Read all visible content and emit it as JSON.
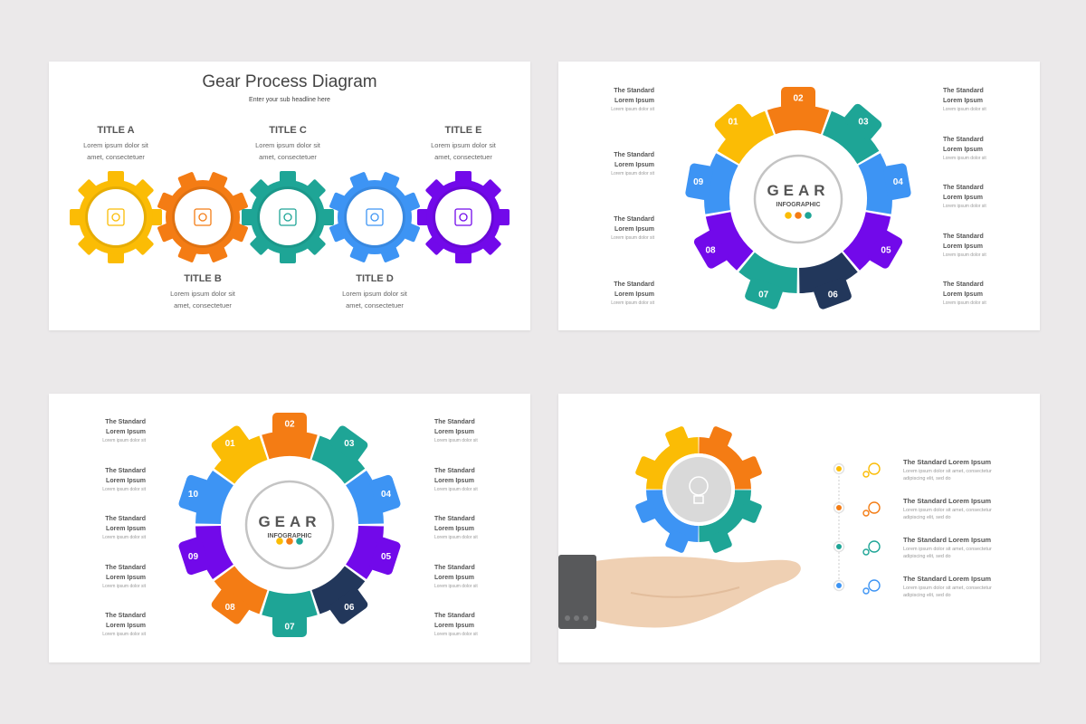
{
  "colors": {
    "yellow": "#fbbc05",
    "orange": "#f47c14",
    "teal": "#1ea596",
    "blue": "#3d94f4",
    "purple": "#7209ea",
    "navy": "#22375b",
    "gray": "#bdbdbd"
  },
  "slide1": {
    "title": "Gear Process Diagram",
    "subtitle": "Enter your sub headline here",
    "gears": [
      {
        "title": "TITLE A",
        "text1": "Lorem ipsum dolor sit",
        "text2": "amet, consectetuer",
        "color": "yellow",
        "icon": "document-flowchart-icon"
      },
      {
        "title": "TITLE B",
        "text1": "Lorem ipsum dolor sit",
        "text2": "amet, consectetuer",
        "color": "orange",
        "icon": "teamwork-hands-icon"
      },
      {
        "title": "TITLE C",
        "text1": "Lorem ipsum dolor sit",
        "text2": "amet, consectetuer",
        "color": "teal",
        "icon": "toolbox-icon"
      },
      {
        "title": "TITLE D",
        "text1": "Lorem ipsum dolor sit",
        "text2": "amet, consectetuer",
        "color": "blue",
        "icon": "rocket-icon"
      },
      {
        "title": "TITLE E",
        "text1": "Lorem ipsum dolor sit",
        "text2": "amet, consectetuer",
        "color": "purple",
        "icon": "brain-icon"
      }
    ]
  },
  "slide2": {
    "center_title": "GEAR",
    "center_subtitle": "INFOGRAPHIC",
    "segments": [
      {
        "num": "01",
        "color": "yellow"
      },
      {
        "num": "02",
        "color": "orange"
      },
      {
        "num": "03",
        "color": "teal"
      },
      {
        "num": "04",
        "color": "blue"
      },
      {
        "num": "05",
        "color": "purple"
      },
      {
        "num": "06",
        "color": "navy"
      },
      {
        "num": "07",
        "color": "teal"
      },
      {
        "num": "08",
        "color": "purple"
      },
      {
        "num": "09",
        "color": "blue"
      }
    ],
    "left_labels": [
      {
        "l1": "The Standard",
        "l2": "Lorem Ipsum",
        "d": "Lorem ipsum dolor sit"
      },
      {
        "l1": "The Standard",
        "l2": "Lorem Ipsum",
        "d": "Lorem ipsum dolor sit"
      },
      {
        "l1": "The Standard",
        "l2": "Lorem Ipsum",
        "d": "Lorem ipsum dolor sit"
      },
      {
        "l1": "The Standard",
        "l2": "Lorem Ipsum",
        "d": "Lorem ipsum dolor sit"
      }
    ],
    "right_labels": [
      {
        "l1": "The Standard",
        "l2": "Lorem Ipsum",
        "d": "Lorem ipsum dolor sit"
      },
      {
        "l1": "The Standard",
        "l2": "Lorem Ipsum",
        "d": "Lorem ipsum dolor sit"
      },
      {
        "l1": "The Standard",
        "l2": "Lorem Ipsum",
        "d": "Lorem ipsum dolor sit"
      },
      {
        "l1": "The Standard",
        "l2": "Lorem Ipsum",
        "d": "Lorem ipsum dolor sit"
      },
      {
        "l1": "The Standard",
        "l2": "Lorem Ipsum",
        "d": "Lorem ipsum dolor sit"
      }
    ]
  },
  "slide3": {
    "center_title": "GEAR",
    "center_subtitle": "INFOGRAPHIC",
    "segments": [
      {
        "num": "01",
        "color": "yellow"
      },
      {
        "num": "02",
        "color": "orange"
      },
      {
        "num": "03",
        "color": "teal"
      },
      {
        "num": "04",
        "color": "blue"
      },
      {
        "num": "05",
        "color": "purple"
      },
      {
        "num": "06",
        "color": "navy"
      },
      {
        "num": "07",
        "color": "teal"
      },
      {
        "num": "08",
        "color": "orange"
      },
      {
        "num": "09",
        "color": "purple"
      },
      {
        "num": "10",
        "color": "blue"
      }
    ],
    "left_labels": [
      {
        "l1": "The Standard",
        "l2": "Lorem Ipsum",
        "d": "Lorem ipsum dolor sit"
      },
      {
        "l1": "The Standard",
        "l2": "Lorem Ipsum",
        "d": "Lorem ipsum dolor sit"
      },
      {
        "l1": "The Standard",
        "l2": "Lorem Ipsum",
        "d": "Lorem ipsum dolor sit"
      },
      {
        "l1": "The Standard",
        "l2": "Lorem Ipsum",
        "d": "Lorem ipsum dolor sit"
      },
      {
        "l1": "The Standard",
        "l2": "Lorem Ipsum",
        "d": "Lorem ipsum dolor sit"
      }
    ],
    "right_labels": [
      {
        "l1": "The Standard",
        "l2": "Lorem Ipsum",
        "d": "Lorem ipsum dolor sit"
      },
      {
        "l1": "The Standard",
        "l2": "Lorem Ipsum",
        "d": "Lorem ipsum dolor sit"
      },
      {
        "l1": "The Standard",
        "l2": "Lorem Ipsum",
        "d": "Lorem ipsum dolor sit"
      },
      {
        "l1": "The Standard",
        "l2": "Lorem Ipsum",
        "d": "Lorem ipsum dolor sit"
      },
      {
        "l1": "The Standard",
        "l2": "Lorem Ipsum",
        "d": "Lorem ipsum dolor sit"
      }
    ]
  },
  "slide4": {
    "gear_colors": [
      "yellow",
      "orange",
      "teal",
      "blue"
    ],
    "center_icon": "lightbulb-icon",
    "items": [
      {
        "title": "The Standard Lorem Ipsum",
        "d1": "Lorem ipsum dolor sit amet, consectetur",
        "d2": "adipiscing elit, sed do",
        "color": "yellow",
        "icon": "gears-icon"
      },
      {
        "title": "The Standard Lorem Ipsum",
        "d1": "Lorem ipsum dolor sit amet, consectetur",
        "d2": "adipiscing elit, sed do",
        "color": "orange",
        "icon": "rocket-icon"
      },
      {
        "title": "The Standard Lorem Ipsum",
        "d1": "Lorem ipsum dolor sit amet, consectetur",
        "d2": "adipiscing elit, sed do",
        "color": "teal",
        "icon": "money-hand-icon"
      },
      {
        "title": "The Standard Lorem Ipsum",
        "d1": "Lorem ipsum dolor sit amet, consectetur",
        "d2": "adipiscing elit, sed do",
        "color": "blue",
        "icon": "paper-plane-icon"
      }
    ]
  }
}
